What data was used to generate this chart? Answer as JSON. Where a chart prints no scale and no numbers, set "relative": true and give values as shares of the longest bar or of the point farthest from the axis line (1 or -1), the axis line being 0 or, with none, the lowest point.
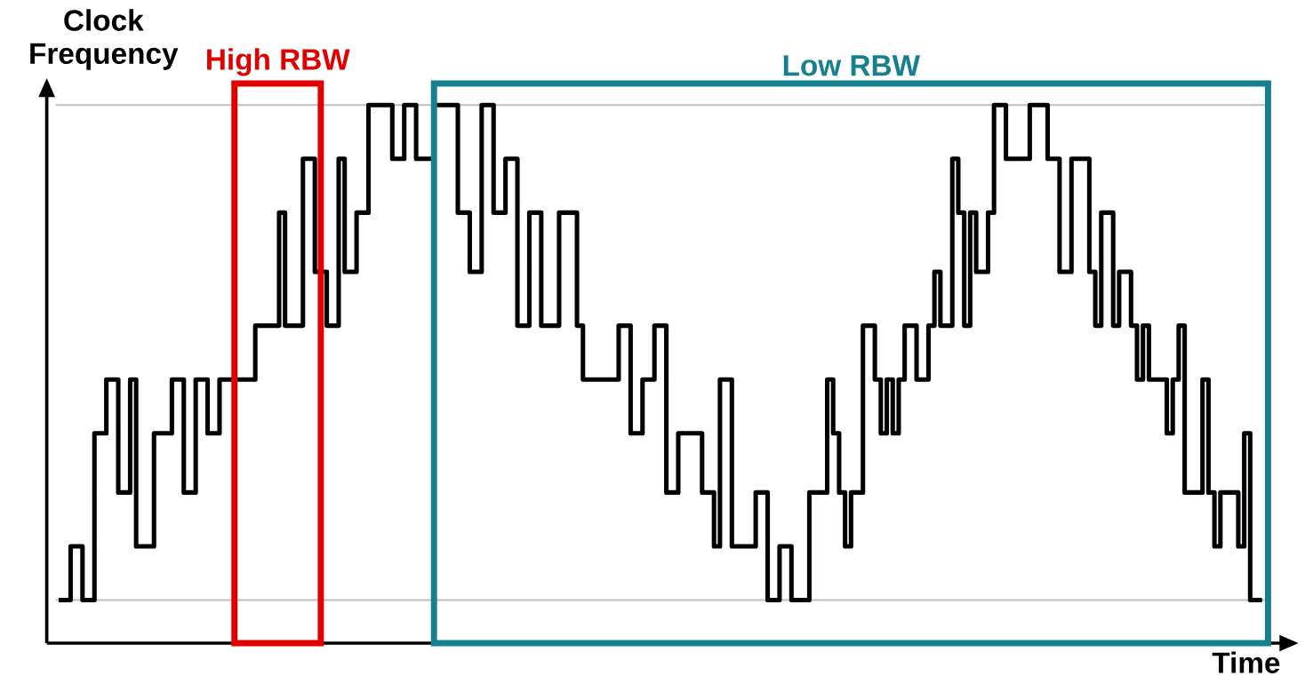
{
  "chart_data": {
    "type": "step",
    "xlabel": "Time",
    "ylabel": "Clock Frequency",
    "relative": true,
    "categories": [
      null,
      null,
      null,
      null,
      null,
      null,
      null,
      null,
      null,
      null,
      null,
      null,
      null,
      null,
      null,
      null,
      null,
      null,
      null,
      null,
      null,
      null,
      null,
      null,
      null,
      null,
      null,
      null,
      null,
      null,
      null,
      null,
      null,
      null,
      null,
      null,
      null,
      null,
      null,
      null,
      null,
      null,
      null,
      null,
      null,
      null,
      null,
      null,
      null,
      null,
      null,
      null,
      null,
      null,
      null,
      null,
      null,
      null,
      null,
      null,
      null,
      null,
      null,
      null,
      null,
      null,
      null,
      null,
      null,
      null,
      null,
      null,
      null,
      null,
      null,
      null,
      null,
      null,
      null,
      null,
      null,
      null,
      null,
      null,
      null,
      null,
      null,
      null,
      null,
      null,
      null,
      null,
      null,
      null,
      null,
      null,
      null,
      null,
      null,
      null,
      null,
      null,
      null,
      null,
      null,
      null,
      null,
      null,
      null,
      null,
      null,
      null,
      null,
      null,
      null,
      null,
      null,
      null,
      null,
      null,
      null,
      null,
      null,
      null,
      null,
      null,
      null,
      null,
      null,
      null,
      null,
      null,
      null,
      null,
      null,
      null,
      null,
      null,
      null,
      null,
      null,
      null,
      null,
      null,
      null,
      null,
      null,
      null,
      null,
      null,
      null,
      null,
      null,
      null,
      null,
      null,
      null,
      null,
      null,
      null,
      null,
      null,
      null,
      null,
      null,
      null,
      null,
      null,
      null,
      null,
      null,
      null,
      null,
      null,
      null,
      null,
      null,
      null,
      null,
      null,
      null,
      null,
      null,
      null,
      null,
      null,
      null,
      null,
      null,
      null,
      null,
      null,
      null,
      null,
      null,
      null,
      null,
      null,
      null,
      null,
      null,
      null,
      null
    ],
    "series": [
      {
        "color": "#000000",
        "values": [
          0.08,
          0.08,
          0.18,
          0.18,
          0.08,
          0.08,
          0.39,
          0.39,
          0.49,
          0.49,
          0.28,
          0.28,
          0.49,
          0.18,
          0.18,
          0.18,
          0.39,
          0.39,
          0.39,
          0.49,
          0.49,
          0.28,
          0.28,
          0.49,
          0.49,
          0.39,
          0.39,
          0.49,
          0.49,
          0.49,
          0.49,
          0.49,
          0.49,
          0.59,
          0.59,
          0.59,
          0.59,
          0.8,
          0.59,
          0.59,
          0.59,
          0.9,
          0.9,
          0.69,
          0.69,
          0.59,
          0.59,
          0.9,
          0.69,
          0.69,
          0.8,
          0.8,
          1,
          1,
          1,
          1,
          0.9,
          0.9,
          1,
          1,
          0.9,
          0.9,
          0.9,
          1,
          1,
          1,
          1,
          0.8,
          0.8,
          0.69,
          0.69,
          1,
          1,
          0.8,
          0.8,
          0.9,
          0.9,
          0.59,
          0.59,
          0.8,
          0.8,
          0.59,
          0.59,
          0.59,
          0.8,
          0.8,
          0.8,
          0.59,
          0.49,
          0.49,
          0.49,
          0.49,
          0.49,
          0.49,
          0.59,
          0.59,
          0.39,
          0.39,
          0.49,
          0.49,
          0.59,
          0.59,
          0.28,
          0.28,
          0.39,
          0.39,
          0.39,
          0.39,
          0.28,
          0.28,
          0.18,
          0.49,
          0.49,
          0.18,
          0.18,
          0.18,
          0.18,
          0.28,
          0.28,
          0.08,
          0.08,
          0.18,
          0.18,
          0.08,
          0.08,
          0.08,
          0.28,
          0.28,
          0.28,
          0.49,
          0.39,
          0.28,
          0.18,
          0.28,
          0.28,
          0.59,
          0.59,
          0.49,
          0.39,
          0.49,
          0.39,
          0.49,
          0.59,
          0.59,
          0.49,
          0.49,
          0.59,
          0.69,
          0.59,
          0.59,
          0.9,
          0.8,
          0.59,
          0.8,
          0.69,
          0.69,
          0.8,
          1,
          1,
          0.9,
          0.9,
          0.9,
          0.9,
          1,
          1,
          1,
          0.9,
          0.9,
          0.69,
          0.69,
          0.9,
          0.9,
          0.9,
          0.69,
          0.59,
          0.8,
          0.8,
          0.59,
          0.69,
          0.69,
          0.59,
          0.49,
          0.59,
          0.49,
          0.49,
          0.49,
          0.39,
          0.49,
          0.59,
          0.28,
          0.28,
          0.28,
          0.49,
          0.28,
          0.18,
          0.28,
          0.28,
          0.28,
          0.18,
          0.39,
          0.08,
          0.08,
          0.08
        ]
      }
    ],
    "ref_lines": [
      {
        "axis": "y",
        "value": 1,
        "color": "#bfbfbf"
      },
      {
        "axis": "y",
        "value": 0.08,
        "color": "#bfbfbf"
      }
    ],
    "annotations": [
      "High RBW",
      "Low RBW"
    ]
  }
}
